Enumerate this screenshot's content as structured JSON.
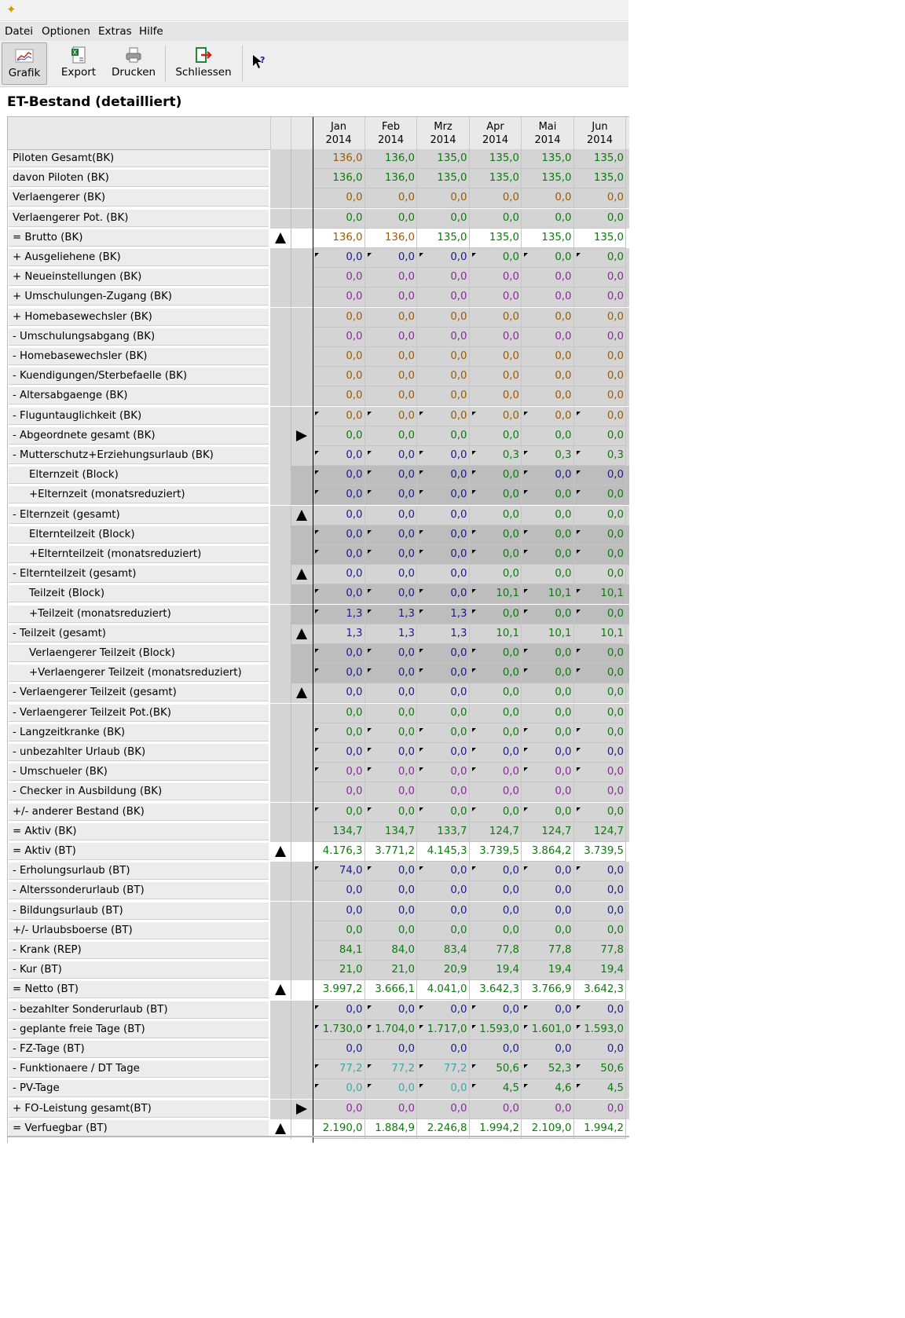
{
  "app": {
    "icon": "star-icon"
  },
  "menu": [
    "Datei",
    "Optionen",
    "Extras",
    "Hilfe"
  ],
  "toolbar": {
    "grafik": "Grafik",
    "export": "Export",
    "drucken": "Drucken",
    "schliessen": "Schliessen",
    "help_icon": "help-pointer-icon"
  },
  "page_title": "ET-Bestand (detailliert)",
  "months": [
    {
      "m": "Jan",
      "y": "2014"
    },
    {
      "m": "Feb",
      "y": "2014"
    },
    {
      "m": "Mrz",
      "y": "2014"
    },
    {
      "m": "Apr",
      "y": "2014"
    },
    {
      "m": "Mai",
      "y": "2014"
    },
    {
      "m": "Jun",
      "y": "2014"
    }
  ],
  "colors": {
    "brown": "#9a5a00",
    "green": "#0c7a0c",
    "navy": "#1a1a8c",
    "purple": "#8a2a9a",
    "teal": "#3aa8a8"
  },
  "rows": [
    {
      "label": "Piloten Gesamt(BK)",
      "values": [
        "136,0",
        "136,0",
        "135,0",
        "135,0",
        "135,0",
        "135,0"
      ],
      "colors": [
        "brown",
        "green",
        "green",
        "green",
        "green",
        "green"
      ]
    },
    {
      "label": "davon Piloten (BK)",
      "values": [
        "136,0",
        "136,0",
        "135,0",
        "135,0",
        "135,0",
        "135,0"
      ],
      "color": "green"
    },
    {
      "label": "Verlaengerer (BK)",
      "values": [
        "0,0",
        "0,0",
        "0,0",
        "0,0",
        "0,0",
        "0,0"
      ],
      "color": "brown"
    },
    {
      "label": "Verlaengerer Pot. (BK)",
      "values": [
        "0,0",
        "0,0",
        "0,0",
        "0,0",
        "0,0",
        "0,0"
      ],
      "color": "green"
    },
    {
      "label": "= Brutto (BK)",
      "values": [
        "136,0",
        "136,0",
        "135,0",
        "135,0",
        "135,0",
        "135,0"
      ],
      "colors": [
        "brown",
        "brown",
        "green",
        "green",
        "green",
        "green"
      ],
      "bright": true,
      "m1": "up"
    },
    {
      "label": "+ Ausgeliehene (BK)",
      "values": [
        "0,0",
        "0,0",
        "0,0",
        "0,0",
        "0,0",
        "0,0"
      ],
      "colors": [
        "navy",
        "navy",
        "navy",
        "green",
        "green",
        "green"
      ],
      "flag": true
    },
    {
      "label": "+ Neueinstellungen (BK)",
      "values": [
        "0,0",
        "0,0",
        "0,0",
        "0,0",
        "0,0",
        "0,0"
      ],
      "color": "purple"
    },
    {
      "label": "+ Umschulungen-Zugang (BK)",
      "values": [
        "0,0",
        "0,0",
        "0,0",
        "0,0",
        "0,0",
        "0,0"
      ],
      "color": "purple"
    },
    {
      "label": "+ Homebasewechsler (BK)",
      "values": [
        "0,0",
        "0,0",
        "0,0",
        "0,0",
        "0,0",
        "0,0"
      ],
      "color": "brown"
    },
    {
      "label": "- Umschulungsabgang (BK)",
      "values": [
        "0,0",
        "0,0",
        "0,0",
        "0,0",
        "0,0",
        "0,0"
      ],
      "color": "purple"
    },
    {
      "label": "- Homebasewechsler (BK)",
      "values": [
        "0,0",
        "0,0",
        "0,0",
        "0,0",
        "0,0",
        "0,0"
      ],
      "color": "brown"
    },
    {
      "label": "- Kuendigungen/Sterbefaelle (BK)",
      "values": [
        "0,0",
        "0,0",
        "0,0",
        "0,0",
        "0,0",
        "0,0"
      ],
      "color": "brown"
    },
    {
      "label": "- Altersabgaenge (BK)",
      "values": [
        "0,0",
        "0,0",
        "0,0",
        "0,0",
        "0,0",
        "0,0"
      ],
      "color": "brown"
    },
    {
      "label": "- Fluguntauglichkeit (BK)",
      "values": [
        "0,0",
        "0,0",
        "0,0",
        "0,0",
        "0,0",
        "0,0"
      ],
      "color": "brown",
      "flag": true
    },
    {
      "label": "- Abgeordnete gesamt (BK)",
      "values": [
        "0,0",
        "0,0",
        "0,0",
        "0,0",
        "0,0",
        "0,0"
      ],
      "color": "green",
      "m2": "right"
    },
    {
      "label": "- Mutterschutz+Erziehungsurlaub (BK)",
      "values": [
        "0,0",
        "0,0",
        "0,0",
        "0,3",
        "0,3",
        "0,3"
      ],
      "colors": [
        "navy",
        "navy",
        "navy",
        "green",
        "green",
        "green"
      ],
      "flag": true
    },
    {
      "label": "Elternzeit (Block)",
      "values": [
        "0,0",
        "0,0",
        "0,0",
        "0,0",
        "0,0",
        "0,0"
      ],
      "colors": [
        "navy",
        "navy",
        "navy",
        "green",
        "navy",
        "navy"
      ],
      "flag": true,
      "indent": true,
      "sub": true
    },
    {
      "label": "+Elternzeit (monatsreduziert)",
      "values": [
        "0,0",
        "0,0",
        "0,0",
        "0,0",
        "0,0",
        "0,0"
      ],
      "colors": [
        "navy",
        "navy",
        "navy",
        "green",
        "green",
        "green"
      ],
      "flag": true,
      "indent": true,
      "sub": true
    },
    {
      "label": "- Elternzeit (gesamt)",
      "values": [
        "0,0",
        "0,0",
        "0,0",
        "0,0",
        "0,0",
        "0,0"
      ],
      "colors": [
        "navy",
        "navy",
        "navy",
        "green",
        "green",
        "green"
      ],
      "m2": "up"
    },
    {
      "label": "Elternteilzeit (Block)",
      "values": [
        "0,0",
        "0,0",
        "0,0",
        "0,0",
        "0,0",
        "0,0"
      ],
      "colors": [
        "navy",
        "navy",
        "navy",
        "green",
        "green",
        "green"
      ],
      "flag": true,
      "indent": true,
      "sub": true
    },
    {
      "label": "+Elternteilzeit (monatsreduziert)",
      "values": [
        "0,0",
        "0,0",
        "0,0",
        "0,0",
        "0,0",
        "0,0"
      ],
      "colors": [
        "navy",
        "navy",
        "navy",
        "green",
        "green",
        "green"
      ],
      "flag": true,
      "indent": true,
      "sub": true
    },
    {
      "label": "- Elternteilzeit (gesamt)",
      "values": [
        "0,0",
        "0,0",
        "0,0",
        "0,0",
        "0,0",
        "0,0"
      ],
      "colors": [
        "navy",
        "navy",
        "navy",
        "green",
        "green",
        "green"
      ],
      "m2": "up"
    },
    {
      "label": "Teilzeit (Block)",
      "values": [
        "0,0",
        "0,0",
        "0,0",
        "10,1",
        "10,1",
        "10,1"
      ],
      "colors": [
        "navy",
        "navy",
        "navy",
        "green",
        "green",
        "green"
      ],
      "flag": true,
      "indent": true,
      "sub": true
    },
    {
      "label": "+Teilzeit (monatsreduziert)",
      "values": [
        "1,3",
        "1,3",
        "1,3",
        "0,0",
        "0,0",
        "0,0"
      ],
      "colors": [
        "navy",
        "navy",
        "navy",
        "green",
        "green",
        "green"
      ],
      "flag": true,
      "indent": true,
      "sub": true
    },
    {
      "label": "- Teilzeit (gesamt)",
      "values": [
        "1,3",
        "1,3",
        "1,3",
        "10,1",
        "10,1",
        "10,1"
      ],
      "colors": [
        "navy",
        "navy",
        "navy",
        "green",
        "green",
        "green"
      ],
      "m2": "up"
    },
    {
      "label": "Verlaengerer Teilzeit (Block)",
      "values": [
        "0,0",
        "0,0",
        "0,0",
        "0,0",
        "0,0",
        "0,0"
      ],
      "colors": [
        "navy",
        "navy",
        "navy",
        "green",
        "green",
        "green"
      ],
      "flag": true,
      "indent": true,
      "sub": true
    },
    {
      "label": "+Verlaengerer Teilzeit (monatsreduziert)",
      "values": [
        "0,0",
        "0,0",
        "0,0",
        "0,0",
        "0,0",
        "0,0"
      ],
      "colors": [
        "navy",
        "navy",
        "navy",
        "green",
        "green",
        "green"
      ],
      "flag": true,
      "indent": true,
      "sub": true
    },
    {
      "label": "- Verlaengerer Teilzeit (gesamt)",
      "values": [
        "0,0",
        "0,0",
        "0,0",
        "0,0",
        "0,0",
        "0,0"
      ],
      "colors": [
        "navy",
        "navy",
        "navy",
        "green",
        "green",
        "green"
      ],
      "m2": "up"
    },
    {
      "label": "- Verlaengerer Teilzeit Pot.(BK)",
      "values": [
        "0,0",
        "0,0",
        "0,0",
        "0,0",
        "0,0",
        "0,0"
      ],
      "color": "green"
    },
    {
      "label": "- Langzeitkranke (BK)",
      "values": [
        "0,0",
        "0,0",
        "0,0",
        "0,0",
        "0,0",
        "0,0"
      ],
      "color": "green",
      "flag": true
    },
    {
      "label": "- unbezahlter Urlaub (BK)",
      "values": [
        "0,0",
        "0,0",
        "0,0",
        "0,0",
        "0,0",
        "0,0"
      ],
      "color": "navy",
      "flag": true
    },
    {
      "label": "- Umschueler (BK)",
      "values": [
        "0,0",
        "0,0",
        "0,0",
        "0,0",
        "0,0",
        "0,0"
      ],
      "color": "purple",
      "flag": true
    },
    {
      "label": "- Checker in Ausbildung (BK)",
      "values": [
        "0,0",
        "0,0",
        "0,0",
        "0,0",
        "0,0",
        "0,0"
      ],
      "color": "purple"
    },
    {
      "label": "+/- anderer Bestand (BK)",
      "values": [
        "0,0",
        "0,0",
        "0,0",
        "0,0",
        "0,0",
        "0,0"
      ],
      "color": "green",
      "flag": true
    },
    {
      "label": "= Aktiv (BK)",
      "values": [
        "134,7",
        "134,7",
        "133,7",
        "124,7",
        "124,7",
        "124,7"
      ],
      "color": "green"
    },
    {
      "label": "= Aktiv (BT)",
      "values": [
        "4.176,3",
        "3.771,2",
        "4.145,3",
        "3.739,5",
        "3.864,2",
        "3.739,5"
      ],
      "color": "green",
      "bright": true,
      "m1": "up"
    },
    {
      "label": "- Erholungsurlaub (BT)",
      "values": [
        "74,0",
        "0,0",
        "0,0",
        "0,0",
        "0,0",
        "0,0"
      ],
      "color": "navy",
      "flag": true
    },
    {
      "label": "- Alterssonderurlaub (BT)",
      "values": [
        "0,0",
        "0,0",
        "0,0",
        "0,0",
        "0,0",
        "0,0"
      ],
      "color": "navy"
    },
    {
      "label": "- Bildungsurlaub (BT)",
      "values": [
        "0,0",
        "0,0",
        "0,0",
        "0,0",
        "0,0",
        "0,0"
      ],
      "color": "navy"
    },
    {
      "label": "+/- Urlaubsboerse (BT)",
      "values": [
        "0,0",
        "0,0",
        "0,0",
        "0,0",
        "0,0",
        "0,0"
      ],
      "color": "green"
    },
    {
      "label": "- Krank (REP)",
      "values": [
        "84,1",
        "84,0",
        "83,4",
        "77,8",
        "77,8",
        "77,8"
      ],
      "color": "green"
    },
    {
      "label": "- Kur (BT)",
      "values": [
        "21,0",
        "21,0",
        "20,9",
        "19,4",
        "19,4",
        "19,4"
      ],
      "color": "green"
    },
    {
      "label": "= Netto (BT)",
      "values": [
        "3.997,2",
        "3.666,1",
        "4.041,0",
        "3.642,3",
        "3.766,9",
        "3.642,3"
      ],
      "color": "green",
      "bright": true,
      "m1": "up"
    },
    {
      "label": "- bezahlter Sonderurlaub (BT)",
      "values": [
        "0,0",
        "0,0",
        "0,0",
        "0,0",
        "0,0",
        "0,0"
      ],
      "color": "navy",
      "flag": true
    },
    {
      "label": "- geplante freie Tage (BT)",
      "values": [
        "1.730,0",
        "1.704,0",
        "1.717,0",
        "1.593,0",
        "1.601,0",
        "1.593,0"
      ],
      "color": "green",
      "flag": true
    },
    {
      "label": "- FZ-Tage (BT)",
      "values": [
        "0,0",
        "0,0",
        "0,0",
        "0,0",
        "0,0",
        "0,0"
      ],
      "color": "navy"
    },
    {
      "label": "- Funktionaere / DT Tage",
      "values": [
        "77,2",
        "77,2",
        "77,2",
        "50,6",
        "52,3",
        "50,6"
      ],
      "colors": [
        "teal",
        "teal",
        "teal",
        "green",
        "green",
        "green"
      ],
      "flag": true
    },
    {
      "label": "- PV-Tage",
      "values": [
        "0,0",
        "0,0",
        "0,0",
        "4,5",
        "4,6",
        "4,5"
      ],
      "colors": [
        "teal",
        "teal",
        "teal",
        "green",
        "green",
        "green"
      ],
      "flag": true
    },
    {
      "label": "+ FO-Leistung gesamt(BT)",
      "values": [
        "0,0",
        "0,0",
        "0,0",
        "0,0",
        "0,0",
        "0,0"
      ],
      "color": "purple",
      "m2": "right"
    },
    {
      "label": "= Verfuegbar (BT)",
      "values": [
        "2.190,0",
        "1.884,9",
        "2.246,8",
        "1.994,2",
        "2.109,0",
        "1.994,2"
      ],
      "color": "green",
      "bright": true,
      "m1": "up"
    }
  ]
}
